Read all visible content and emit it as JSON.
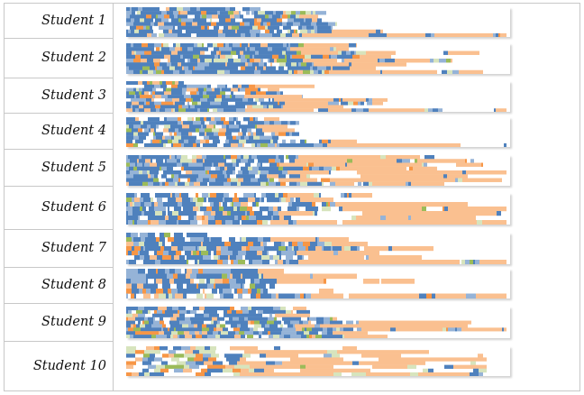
{
  "chart_data": {
    "type": "heatmap",
    "title": "",
    "xlabel": "",
    "ylabel": "",
    "legend": "none",
    "palette": {
      "dark_blue": "#4f81bd",
      "light_blue": "#95b3d7",
      "peach": "#fac090",
      "orange": "#f79646",
      "pale_green": "#d7e4bd",
      "olive": "#9bbb59"
    },
    "rows": [
      {
        "label": "Student 1",
        "seed": 11,
        "lines": [
          0.35,
          0.52,
          0.5,
          0.51,
          0.55,
          0.62,
          0.67,
          0.99
        ],
        "shade": 0.55,
        "density": 0.9
      },
      {
        "label": "Student 2",
        "seed": 23,
        "lines": [
          0.6,
          0.58,
          0.92,
          0.69,
          0.85,
          0.73,
          0.65,
          0.93
        ],
        "shade": 0.5,
        "density": 0.95
      },
      {
        "label": "Student 3",
        "seed": 37,
        "lines": [
          0.15,
          0.5,
          0.4,
          0.52,
          0.46,
          0.68,
          0.67,
          0.67,
          0.99
        ],
        "shade": 0.32,
        "density": 0.9
      },
      {
        "label": "Student 4",
        "seed": 41,
        "lines": [
          0.4,
          0.45,
          0.42,
          0.44,
          0.45,
          0.44,
          0.6,
          0.99
        ],
        "shade": 0.4,
        "density": 0.85
      },
      {
        "label": "Student 5",
        "seed": 53,
        "lines": [
          0.99,
          0.95,
          0.93,
          0.81,
          0.99,
          0.89,
          0.98,
          0.97
        ],
        "shade": 0.45,
        "density": 0.9
      },
      {
        "label": "Student 6",
        "seed": 67,
        "lines": [
          0.64,
          0.54,
          0.89,
          0.99,
          0.99,
          0.91,
          0.99
        ],
        "shade": 0.42,
        "density": 0.9
      },
      {
        "label": "Student 7",
        "seed": 71,
        "lines": [
          0.22,
          0.58,
          0.63,
          0.8,
          0.66,
          0.77,
          0.99
        ],
        "shade": 0.48,
        "density": 0.9
      },
      {
        "label": "Student 8",
        "seed": 83,
        "lines": [
          0.48,
          0.6,
          0.75,
          0.43,
          0.54,
          0.99
        ],
        "shade": 0.38,
        "density": 0.85
      },
      {
        "label": "Student 9",
        "seed": 97,
        "lines": [
          0.47,
          0.48,
          0.48,
          0.55,
          0.9,
          0.89,
          0.99,
          0.63,
          0.68
        ],
        "shade": 0.48,
        "density": 0.9
      },
      {
        "label": "Student 10",
        "seed": 101,
        "lines": [
          0.6,
          0.86,
          0.93,
          0.94,
          0.92,
          0.94,
          0.94,
          0.93
        ],
        "shade": 0.3,
        "density": 0.75,
        "mode": "tiles"
      }
    ]
  }
}
